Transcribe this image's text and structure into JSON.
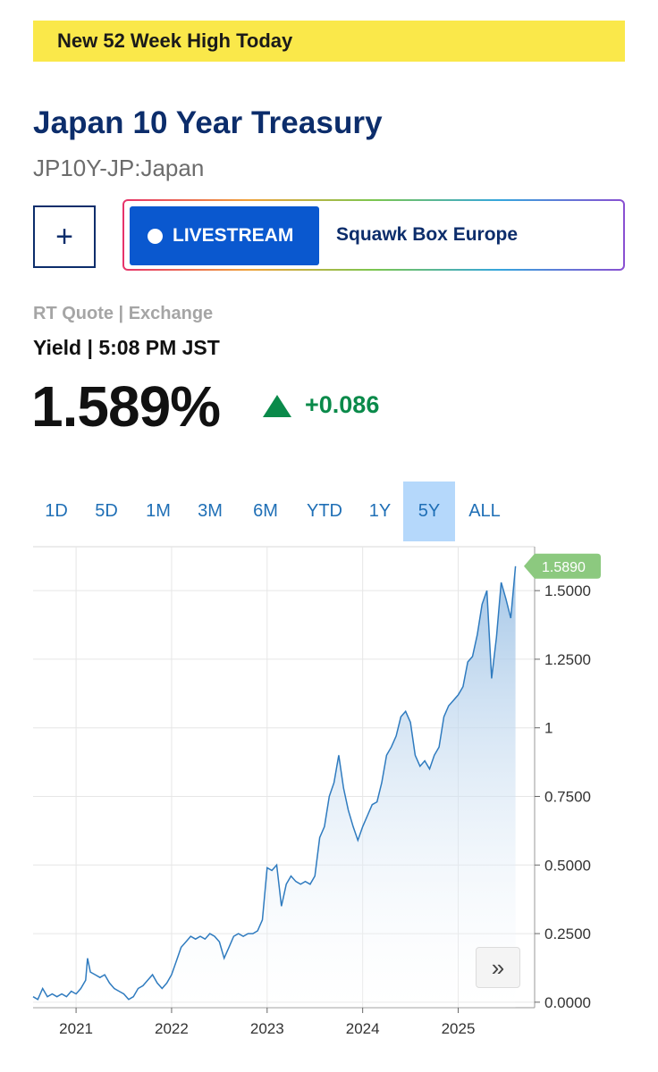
{
  "banner": {
    "text": "New 52 Week High Today"
  },
  "header": {
    "title": "Japan 10 Year Treasury",
    "symbol": "JP10Y-JP:Japan"
  },
  "actions": {
    "add_label": "+",
    "livestream_label": "LIVESTREAM",
    "show_name": "Squawk Box Europe"
  },
  "quote": {
    "source": "RT Quote | Exchange",
    "label": "Yield | 5:08 PM JST",
    "price": "1.589%",
    "change": "+0.086"
  },
  "tabs": [
    {
      "label": "1D",
      "active": false
    },
    {
      "label": "5D",
      "active": false
    },
    {
      "label": "1M",
      "active": false
    },
    {
      "label": "3M",
      "active": false
    },
    {
      "label": "6M",
      "active": false
    },
    {
      "label": "YTD",
      "active": false
    },
    {
      "label": "1Y",
      "active": false
    },
    {
      "label": "5Y",
      "active": true
    },
    {
      "label": "ALL",
      "active": false
    }
  ],
  "scroll_button": {
    "label": "»"
  },
  "colors": {
    "line": "#2f7bbf",
    "last_value_tag": "#8cc97f",
    "up": "#0a8a4a",
    "active_tab": "#b5d8fb"
  },
  "chart_data": {
    "type": "area",
    "xlabel": "",
    "ylabel": "",
    "x_tick_labels": [
      "2021",
      "2022",
      "2023",
      "2024",
      "2025"
    ],
    "y_tick_labels": [
      "0.0000",
      "0.2500",
      "0.5000",
      "0.7500",
      1.0,
      "1.2500",
      "1.5000"
    ],
    "ylim": [
      -0.02,
      1.66
    ],
    "xlim": [
      2020.55,
      2025.8
    ],
    "last_value_label": "1.5890",
    "grid": true,
    "series": [
      {
        "x": [
          2020.55,
          2020.6,
          2020.65,
          2020.7,
          2020.75,
          2020.8,
          2020.85,
          2020.9,
          2020.95,
          2021.0,
          2021.05,
          2021.1,
          2021.12,
          2021.15,
          2021.2,
          2021.25,
          2021.3,
          2021.35,
          2021.4,
          2021.45,
          2021.5,
          2021.55,
          2021.6,
          2021.65,
          2021.7,
          2021.75,
          2021.8,
          2021.85,
          2021.9,
          2021.95,
          2022.0,
          2022.05,
          2022.1,
          2022.15,
          2022.2,
          2022.25,
          2022.3,
          2022.35,
          2022.4,
          2022.45,
          2022.5,
          2022.55,
          2022.6,
          2022.65,
          2022.7,
          2022.75,
          2022.8,
          2022.85,
          2022.9,
          2022.95,
          2023.0,
          2023.05,
          2023.1,
          2023.15,
          2023.2,
          2023.25,
          2023.3,
          2023.35,
          2023.4,
          2023.45,
          2023.5,
          2023.55,
          2023.6,
          2023.65,
          2023.7,
          2023.75,
          2023.8,
          2023.85,
          2023.9,
          2023.95,
          2024.0,
          2024.05,
          2024.1,
          2024.15,
          2024.2,
          2024.25,
          2024.3,
          2024.35,
          2024.4,
          2024.45,
          2024.5,
          2024.55,
          2024.6,
          2024.65,
          2024.7,
          2024.75,
          2024.8,
          2024.85,
          2024.9,
          2024.95,
          2025.0,
          2025.05,
          2025.1,
          2025.15,
          2025.2,
          2025.25,
          2025.3,
          2025.35,
          2025.4,
          2025.45,
          2025.5,
          2025.55,
          2025.6
        ],
        "y": [
          0.02,
          0.01,
          0.05,
          0.02,
          0.03,
          0.02,
          0.03,
          0.02,
          0.04,
          0.03,
          0.05,
          0.08,
          0.16,
          0.11,
          0.1,
          0.09,
          0.1,
          0.07,
          0.05,
          0.04,
          0.03,
          0.01,
          0.02,
          0.05,
          0.06,
          0.08,
          0.1,
          0.07,
          0.05,
          0.07,
          0.1,
          0.15,
          0.2,
          0.22,
          0.24,
          0.23,
          0.24,
          0.23,
          0.25,
          0.24,
          0.22,
          0.16,
          0.2,
          0.24,
          0.25,
          0.24,
          0.25,
          0.25,
          0.26,
          0.3,
          0.49,
          0.48,
          0.5,
          0.35,
          0.43,
          0.46,
          0.44,
          0.43,
          0.44,
          0.43,
          0.46,
          0.6,
          0.64,
          0.75,
          0.8,
          0.9,
          0.78,
          0.7,
          0.64,
          0.59,
          0.64,
          0.68,
          0.72,
          0.73,
          0.8,
          0.9,
          0.93,
          0.97,
          1.04,
          1.06,
          1.02,
          0.9,
          0.86,
          0.88,
          0.85,
          0.9,
          0.93,
          1.04,
          1.08,
          1.1,
          1.12,
          1.15,
          1.24,
          1.26,
          1.34,
          1.45,
          1.5,
          1.18,
          1.33,
          1.53,
          1.47,
          1.4,
          1.589
        ]
      }
    ]
  }
}
